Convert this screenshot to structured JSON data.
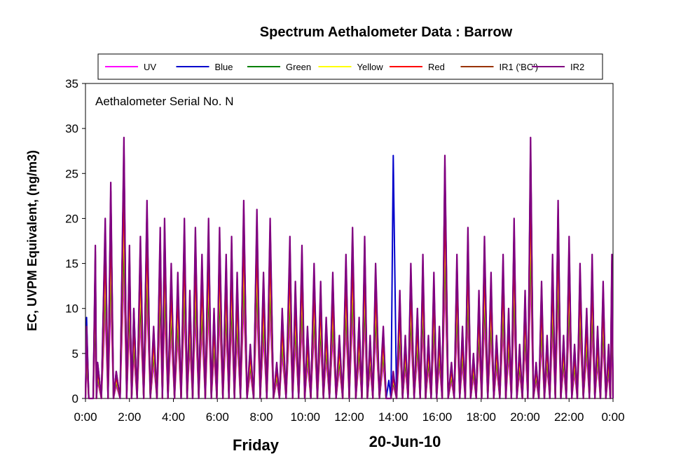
{
  "chart_data": {
    "type": "line",
    "title": "Spectrum Aethalometer Data  :  Barrow",
    "ylabel": "EC, UVPM  Equivalent, (ng/m3)",
    "xlabel": "",
    "ylim": [
      0,
      35
    ],
    "yticks": [
      "0",
      "5",
      "10",
      "15",
      "20",
      "25",
      "30",
      "35"
    ],
    "xlim": [
      0,
      24
    ],
    "xticks": [
      "0:00",
      "2:00",
      "4:00",
      "6:00",
      "8:00",
      "10:00",
      "12:00",
      "14:00",
      "16:00",
      "18:00",
      "20:00",
      "22:00",
      "0:00"
    ],
    "annotation": "Aethalometer  Serial No. N",
    "day_label": "Friday",
    "date_label": "20-Jun-10",
    "legend_position": "top",
    "grid": false,
    "series": [
      {
        "name": "UV",
        "color": "#ff00ff"
      },
      {
        "name": "Blue",
        "color": "#0000cc"
      },
      {
        "name": "Green",
        "color": "#008000"
      },
      {
        "name": "Yellow",
        "color": "#ffff00"
      },
      {
        "name": "Red",
        "color": "#ff0000"
      },
      {
        "name": "IR1 ('BC')",
        "color": "#993300"
      },
      {
        "name": "IR2",
        "color": "#800080"
      }
    ],
    "peaks": {
      "x": [
        0.05,
        0.25,
        0.45,
        0.55,
        0.9,
        1.15,
        1.4,
        1.75,
        2.0,
        2.2,
        2.5,
        2.8,
        3.1,
        3.4,
        3.6,
        3.9,
        4.2,
        4.5,
        4.75,
        5.0,
        5.3,
        5.6,
        5.85,
        6.1,
        6.4,
        6.65,
        6.9,
        7.2,
        7.5,
        7.8,
        8.1,
        8.4,
        8.7,
        8.95,
        9.3,
        9.55,
        9.85,
        10.1,
        10.4,
        10.7,
        10.95,
        11.25,
        11.55,
        11.85,
        12.15,
        12.45,
        12.7,
        12.95,
        13.2,
        13.55,
        13.8,
        14.0,
        14.3,
        14.55,
        14.8,
        15.1,
        15.35,
        15.6,
        15.85,
        16.1,
        16.35,
        16.65,
        16.9,
        17.15,
        17.4,
        17.65,
        17.9,
        18.15,
        18.45,
        18.7,
        19.0,
        19.25,
        19.5,
        19.75,
        20.0,
        20.25,
        20.5,
        20.75,
        21.0,
        21.25,
        21.5,
        21.75,
        22.0,
        22.25,
        22.5,
        22.8,
        23.05,
        23.3,
        23.55,
        23.8,
        23.95
      ],
      "IR2": [
        8,
        0,
        17,
        4,
        20,
        24,
        3,
        29,
        17,
        10,
        18,
        22,
        8,
        19,
        20,
        15,
        14,
        20,
        12,
        19,
        16,
        20,
        10,
        19,
        16,
        18,
        14,
        22,
        6,
        21,
        14,
        20,
        4,
        10,
        18,
        13,
        17,
        8,
        15,
        13,
        9,
        14,
        7,
        16,
        19,
        9,
        18,
        7,
        15,
        8,
        0,
        3,
        12,
        7,
        15,
        10,
        16,
        7,
        14,
        8,
        27,
        4,
        16,
        8,
        19,
        5,
        12,
        18,
        14,
        7,
        16,
        10,
        20,
        6,
        12,
        29,
        4,
        13,
        7,
        16,
        22,
        7,
        18,
        6,
        15,
        10,
        16,
        8,
        13,
        6,
        16
      ],
      "Blue": [
        9,
        0,
        16,
        4,
        19,
        23,
        3,
        28,
        16,
        10,
        17,
        21,
        7,
        18,
        19,
        14,
        13,
        19,
        11,
        18,
        15,
        19,
        9,
        18,
        15,
        17,
        13,
        21,
        5,
        20,
        13,
        19,
        3,
        9,
        17,
        12,
        16,
        7,
        14,
        12,
        8,
        13,
        6,
        15,
        18,
        8,
        17,
        6,
        14,
        7,
        2,
        27,
        11,
        6,
        14,
        9,
        15,
        6,
        13,
        7,
        26,
        3,
        15,
        7,
        18,
        4,
        11,
        17,
        13,
        6,
        15,
        9,
        19,
        5,
        11,
        28,
        3,
        12,
        6,
        15,
        21,
        6,
        17,
        5,
        14,
        9,
        15,
        7,
        12,
        5,
        15
      ]
    }
  }
}
